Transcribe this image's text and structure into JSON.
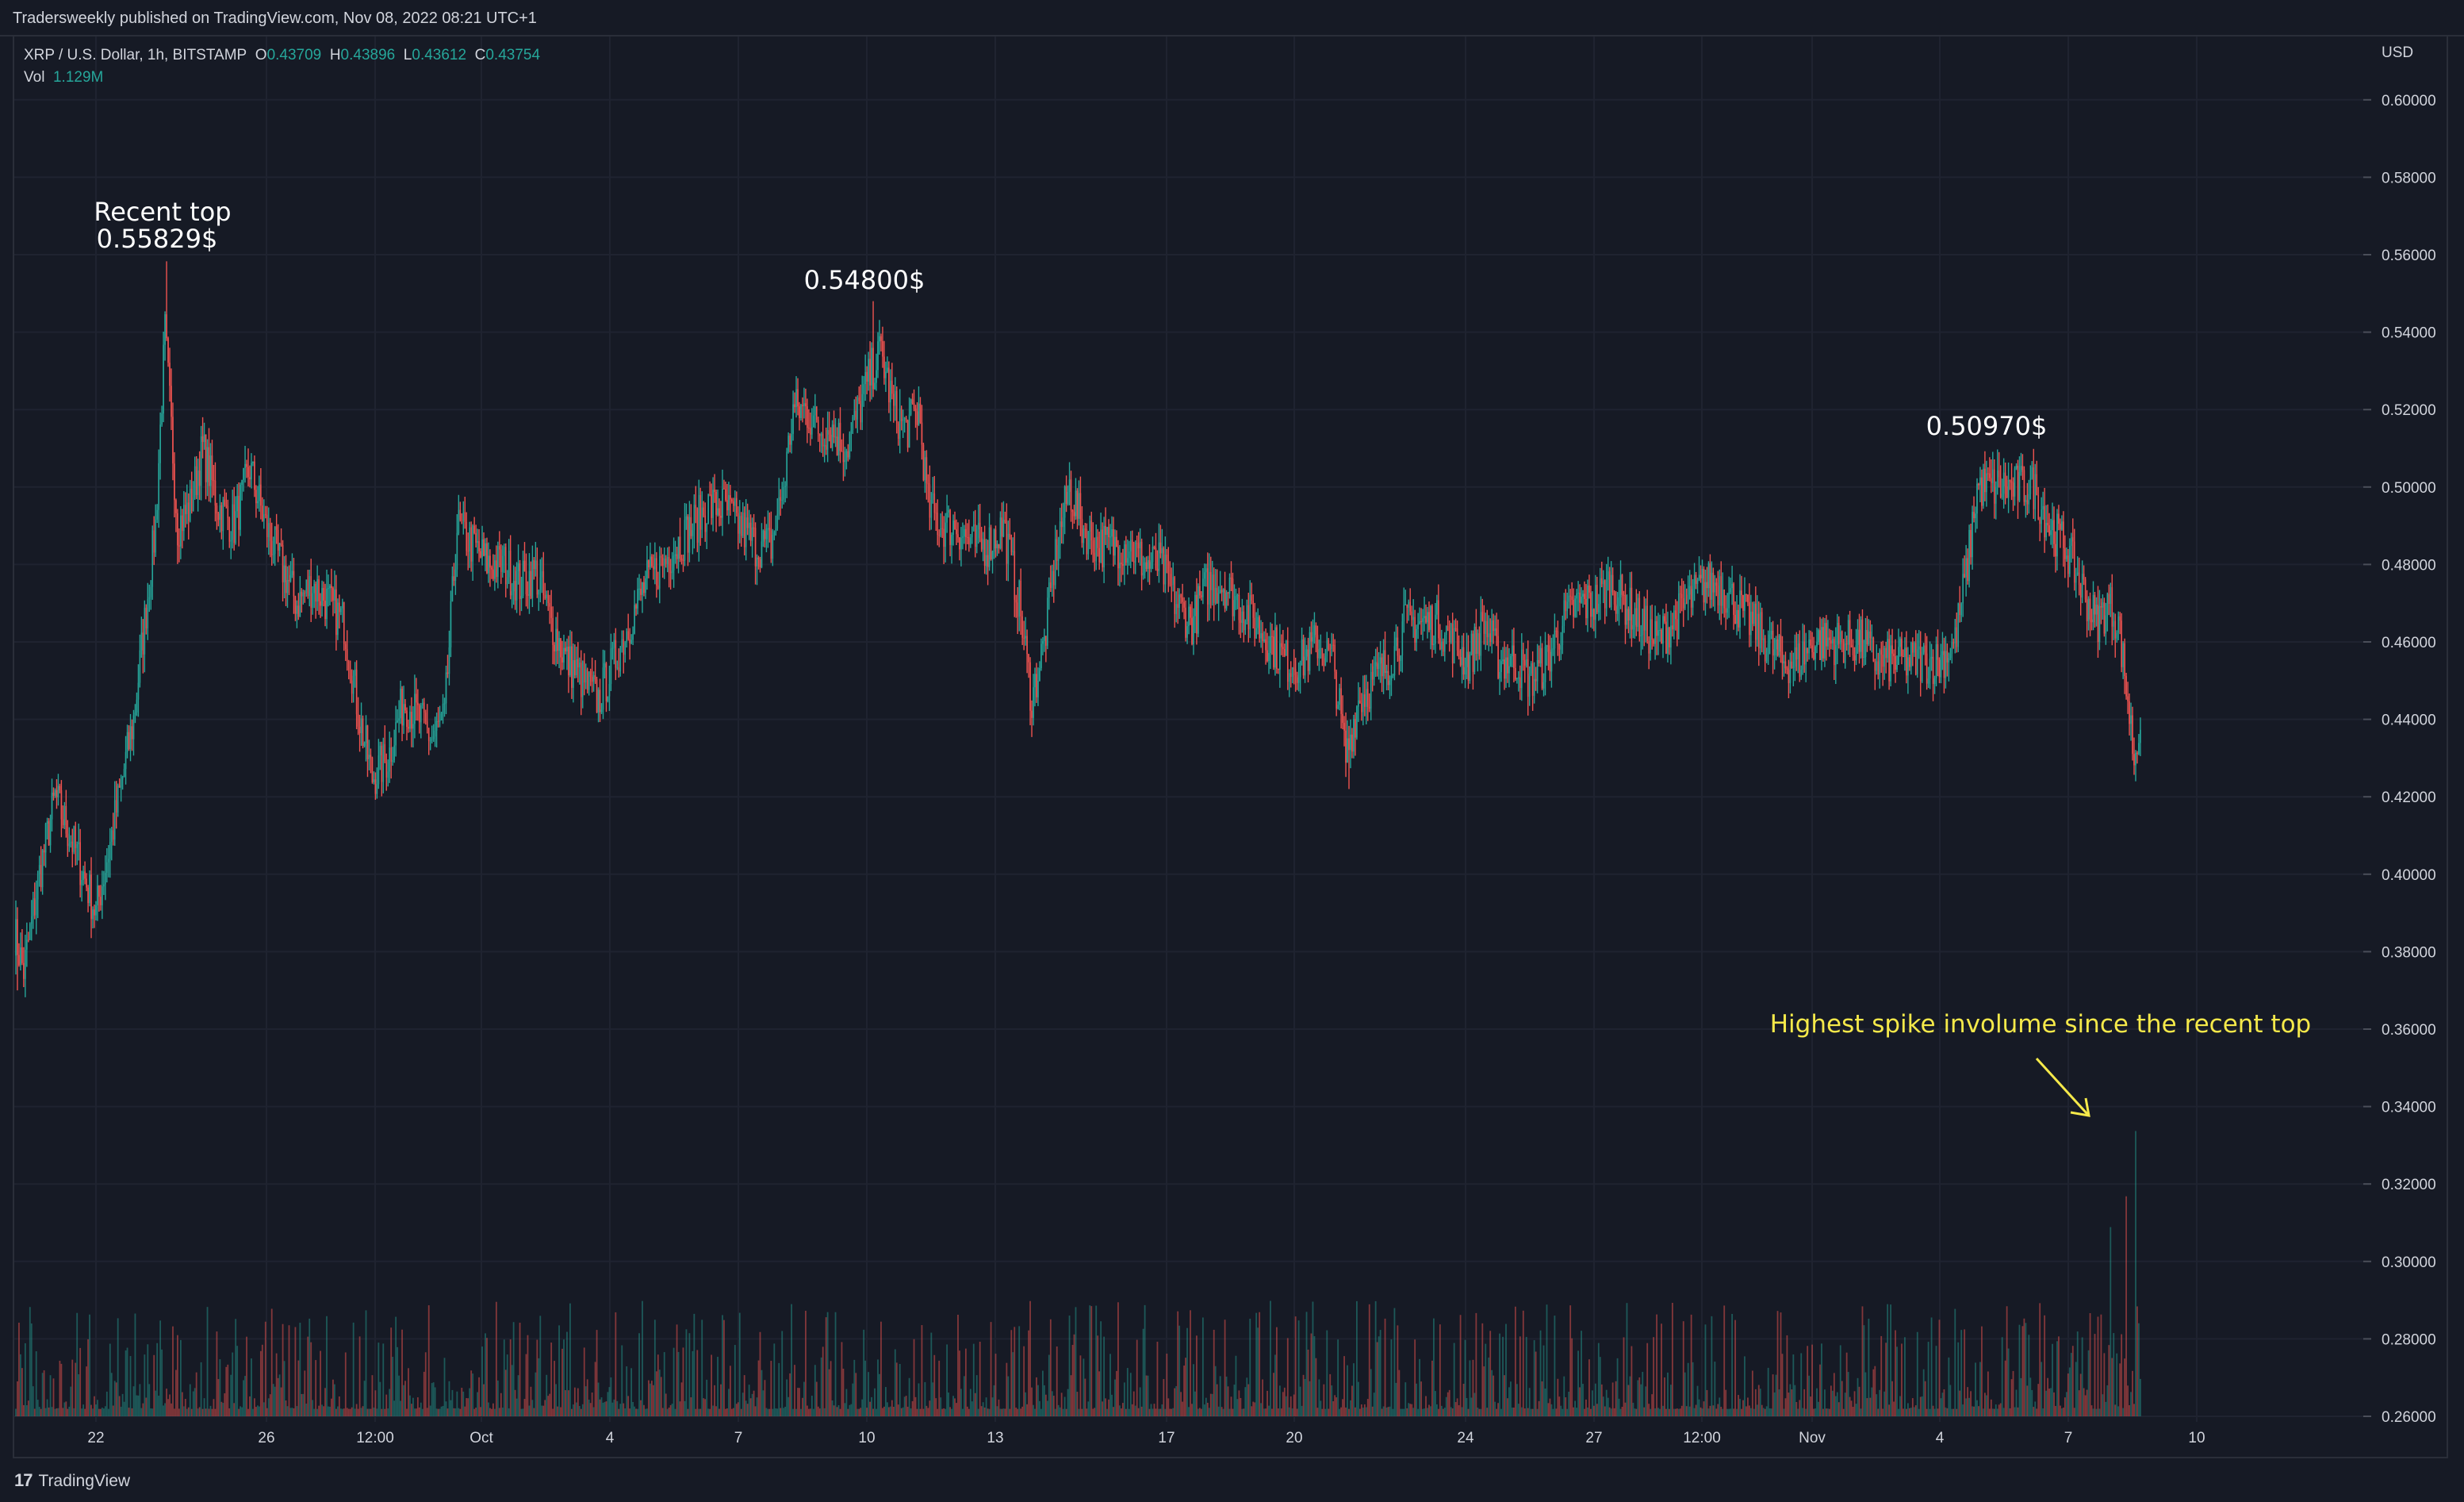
{
  "header": {
    "published": "Tradersweekly published on TradingView.com, Nov 08, 2022 08:21 UTC+1"
  },
  "legend": {
    "symbol": "XRP / U.S. Dollar, 1h, BITSTAMP",
    "open_label": "O",
    "open": "0.43709",
    "high_label": "H",
    "high": "0.43896",
    "low_label": "L",
    "low": "0.43612",
    "close_label": "C",
    "close": "0.43754",
    "vol_label": "Vol",
    "vol": "1.129M"
  },
  "footer": {
    "brand": "TradingView",
    "logo_icon": "tradingview-logo-icon"
  },
  "colors": {
    "background": "#161a25",
    "grid": "#1f2330",
    "up": "#26a69a",
    "down": "#ef5350",
    "text": "#d1d4dc",
    "annotation": "#f5e94a"
  },
  "chart_data": {
    "type": "candlestick",
    "currency": "USD",
    "interval": "1h",
    "y_ticks": [
      "0.60000",
      "0.58000",
      "0.56000",
      "0.54000",
      "0.52000",
      "0.50000",
      "0.48000",
      "0.46000",
      "0.44000",
      "0.42000",
      "0.40000",
      "0.38000",
      "0.36000",
      "0.34000",
      "0.32000",
      "0.30000",
      "0.28000",
      "0.26000"
    ],
    "ylim": [
      0.26,
      0.6
    ],
    "x_ticks": [
      "22",
      "26",
      "12:00",
      "Oct",
      "4",
      "7",
      "10",
      "13",
      "17",
      "20",
      "24",
      "27",
      "12:00",
      "Nov",
      "4",
      "7",
      "10"
    ],
    "price_path": [
      [
        0,
        0.385
      ],
      [
        6,
        0.375
      ],
      [
        16,
        0.4
      ],
      [
        26,
        0.42
      ],
      [
        40,
        0.405
      ],
      [
        52,
        0.39
      ],
      [
        62,
        0.41
      ],
      [
        76,
        0.44
      ],
      [
        90,
        0.49
      ],
      [
        96,
        0.54
      ],
      [
        104,
        0.49
      ],
      [
        112,
        0.495
      ],
      [
        120,
        0.51
      ],
      [
        130,
        0.495
      ],
      [
        140,
        0.49
      ],
      [
        150,
        0.505
      ],
      [
        160,
        0.49
      ],
      [
        170,
        0.48
      ],
      [
        180,
        0.47
      ],
      [
        190,
        0.475
      ],
      [
        200,
        0.47
      ],
      [
        210,
        0.465
      ],
      [
        220,
        0.44
      ],
      [
        228,
        0.425
      ],
      [
        238,
        0.43
      ],
      [
        248,
        0.445
      ],
      [
        258,
        0.44
      ],
      [
        266,
        0.435
      ],
      [
        274,
        0.44
      ],
      [
        282,
        0.49
      ],
      [
        292,
        0.485
      ],
      [
        302,
        0.48
      ],
      [
        312,
        0.48
      ],
      [
        322,
        0.475
      ],
      [
        332,
        0.478
      ],
      [
        342,
        0.465
      ],
      [
        352,
        0.455
      ],
      [
        362,
        0.45
      ],
      [
        372,
        0.445
      ],
      [
        382,
        0.455
      ],
      [
        392,
        0.465
      ],
      [
        402,
        0.475
      ],
      [
        412,
        0.48
      ],
      [
        422,
        0.485
      ],
      [
        432,
        0.49
      ],
      [
        442,
        0.495
      ],
      [
        452,
        0.495
      ],
      [
        462,
        0.49
      ],
      [
        472,
        0.485
      ],
      [
        482,
        0.485
      ],
      [
        490,
        0.5
      ],
      [
        496,
        0.52
      ],
      [
        504,
        0.52
      ],
      [
        512,
        0.515
      ],
      [
        520,
        0.515
      ],
      [
        530,
        0.51
      ],
      [
        538,
        0.52
      ],
      [
        546,
        0.53
      ],
      [
        552,
        0.535
      ],
      [
        560,
        0.52
      ],
      [
        568,
        0.515
      ],
      [
        576,
        0.52
      ],
      [
        582,
        0.495
      ],
      [
        590,
        0.49
      ],
      [
        600,
        0.49
      ],
      [
        610,
        0.485
      ],
      [
        620,
        0.485
      ],
      [
        630,
        0.49
      ],
      [
        640,
        0.47
      ],
      [
        648,
        0.445
      ],
      [
        656,
        0.46
      ],
      [
        664,
        0.485
      ],
      [
        672,
        0.5
      ],
      [
        680,
        0.49
      ],
      [
        690,
        0.485
      ],
      [
        700,
        0.485
      ],
      [
        710,
        0.485
      ],
      [
        720,
        0.48
      ],
      [
        730,
        0.48
      ],
      [
        740,
        0.47
      ],
      [
        750,
        0.465
      ],
      [
        760,
        0.475
      ],
      [
        770,
        0.475
      ],
      [
        780,
        0.47
      ],
      [
        790,
        0.465
      ],
      [
        800,
        0.46
      ],
      [
        810,
        0.455
      ],
      [
        820,
        0.455
      ],
      [
        830,
        0.46
      ],
      [
        840,
        0.455
      ],
      [
        848,
        0.43
      ],
      [
        856,
        0.445
      ],
      [
        866,
        0.45
      ],
      [
        876,
        0.455
      ],
      [
        886,
        0.465
      ],
      [
        896,
        0.465
      ],
      [
        906,
        0.465
      ],
      [
        916,
        0.46
      ],
      [
        926,
        0.455
      ],
      [
        936,
        0.465
      ],
      [
        946,
        0.455
      ],
      [
        956,
        0.455
      ],
      [
        966,
        0.45
      ],
      [
        976,
        0.455
      ],
      [
        986,
        0.465
      ],
      [
        996,
        0.47
      ],
      [
        1006,
        0.47
      ],
      [
        1016,
        0.475
      ],
      [
        1026,
        0.47
      ],
      [
        1036,
        0.465
      ],
      [
        1046,
        0.46
      ],
      [
        1056,
        0.465
      ],
      [
        1066,
        0.47
      ],
      [
        1076,
        0.475
      ],
      [
        1086,
        0.475
      ],
      [
        1096,
        0.47
      ],
      [
        1106,
        0.465
      ],
      [
        1116,
        0.46
      ],
      [
        1126,
        0.455
      ],
      [
        1136,
        0.455
      ],
      [
        1146,
        0.46
      ],
      [
        1156,
        0.46
      ],
      [
        1166,
        0.46
      ],
      [
        1176,
        0.46
      ],
      [
        1186,
        0.455
      ],
      [
        1196,
        0.455
      ],
      [
        1206,
        0.455
      ],
      [
        1216,
        0.455
      ],
      [
        1226,
        0.455
      ],
      [
        1236,
        0.46
      ],
      [
        1244,
        0.48
      ],
      [
        1250,
        0.5
      ],
      [
        1258,
        0.5
      ],
      [
        1266,
        0.5
      ],
      [
        1276,
        0.5
      ],
      [
        1286,
        0.5
      ],
      [
        1296,
        0.49
      ],
      [
        1306,
        0.485
      ],
      [
        1316,
        0.475
      ],
      [
        1326,
        0.465
      ],
      [
        1334,
        0.47
      ],
      [
        1340,
        0.465
      ],
      [
        1346,
        0.445
      ],
      [
        1350,
        0.43
      ],
      [
        1354,
        0.44
      ]
    ],
    "annotations": [
      {
        "text": "Recent top",
        "price": 0.55829
      },
      {
        "text": "0.55829$",
        "price": 0.55829
      },
      {
        "text": "0.54800$",
        "price": 0.548
      },
      {
        "text": "0.50970$",
        "price": 0.5097
      },
      {
        "text": "Highest spike involume since the recent top"
      }
    ]
  }
}
